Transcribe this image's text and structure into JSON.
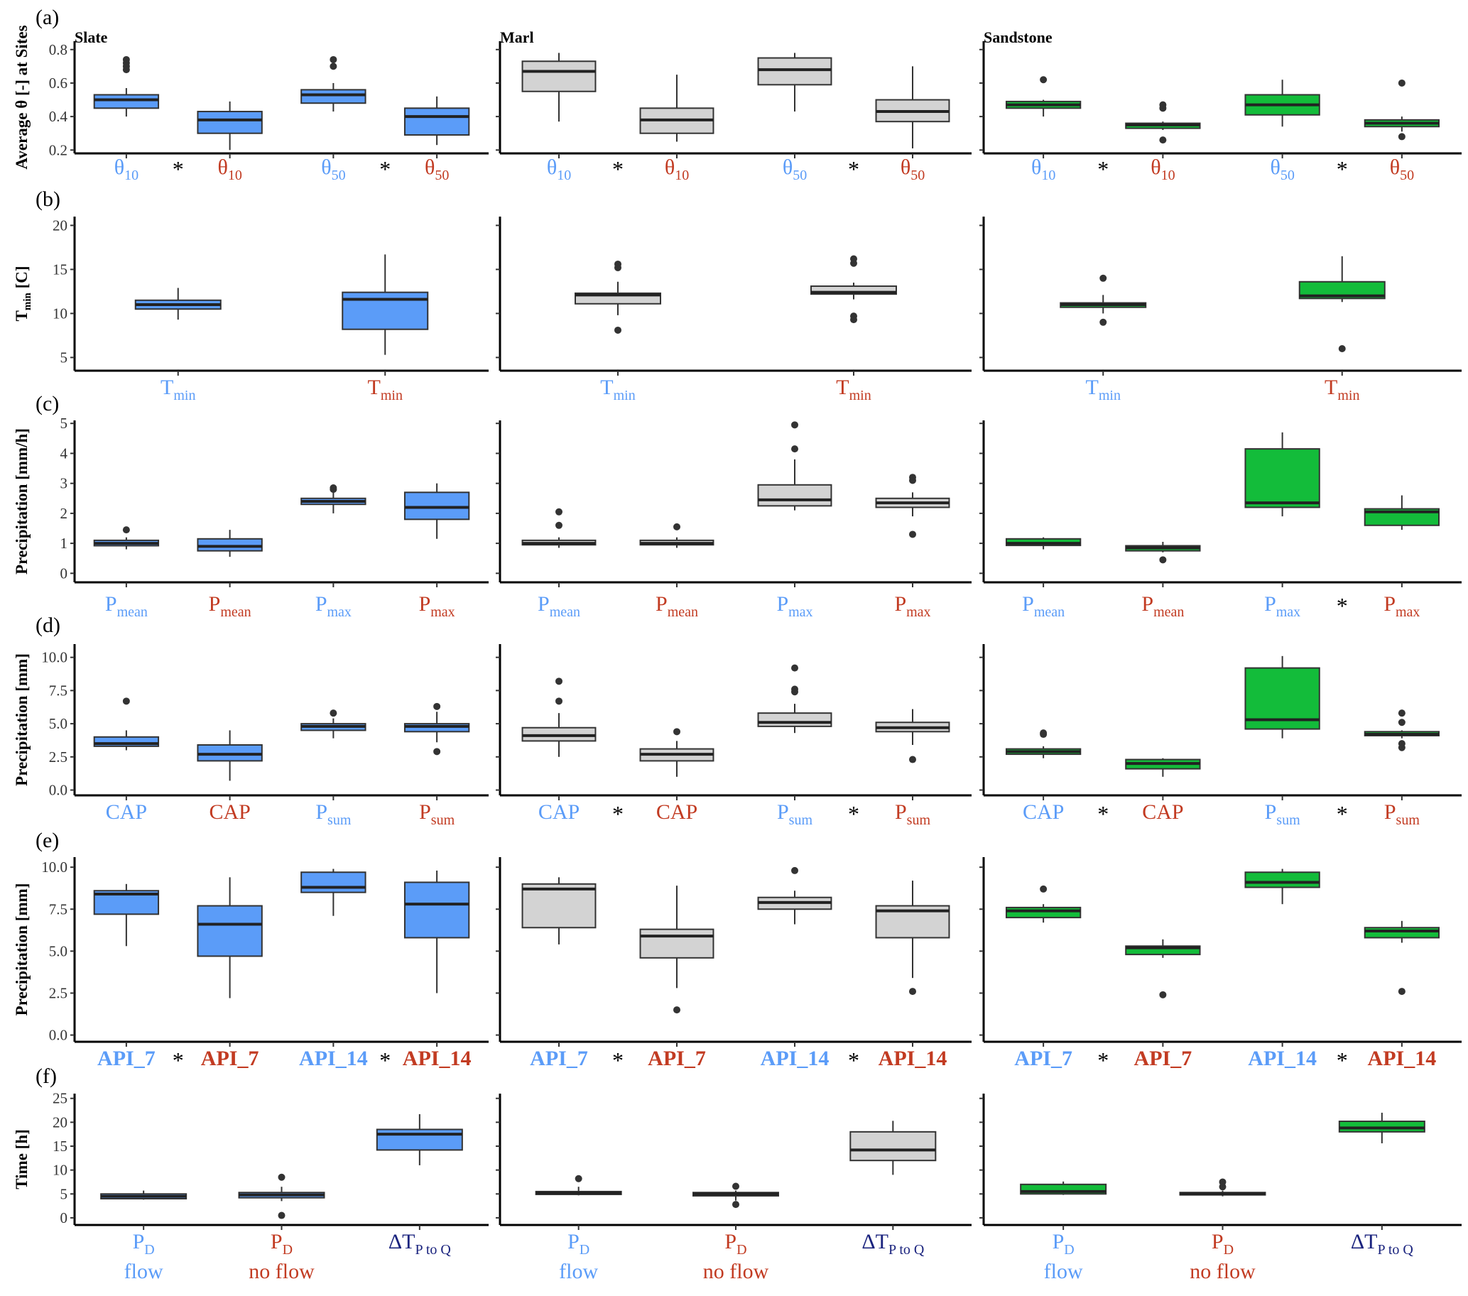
{
  "panel_titles": [
    "Slate",
    "Marl",
    "Sandstone"
  ],
  "colors": {
    "flow": "#5b9cf8",
    "noflow": "#c23b22",
    "slate": "#5b9cf8",
    "marl": "#d3d3d3",
    "sandstone": "#13bc3a",
    "dt": "#1a237e"
  },
  "chart_data": [
    {
      "type": "box",
      "panel": "(a)",
      "ylabel": "Average θ [-] at Sites",
      "yticks": [
        "0.2",
        "0.4",
        "0.6",
        "0.8"
      ],
      "ylim": [
        0.18,
        0.85
      ],
      "categories": [
        {
          "main": "θ",
          "sub": "10",
          "cond": "flow"
        },
        {
          "main": "θ",
          "sub": "10",
          "cond": "noflow"
        },
        {
          "main": "θ",
          "sub": "50",
          "cond": "flow"
        },
        {
          "main": "θ",
          "sub": "50",
          "cond": "noflow"
        }
      ],
      "stars": {
        "Slate": [
          0,
          2
        ],
        "Marl": [
          0,
          2
        ],
        "Sandstone": [
          0,
          2
        ]
      },
      "groups": {
        "Slate": [
          {
            "q1": 0.45,
            "med": 0.5,
            "q3": 0.53,
            "lo": 0.4,
            "hi": 0.57,
            "out": [
              0.68,
              0.7,
              0.72,
              0.74
            ]
          },
          {
            "q1": 0.3,
            "med": 0.38,
            "q3": 0.43,
            "lo": 0.2,
            "hi": 0.49,
            "out": []
          },
          {
            "q1": 0.48,
            "med": 0.53,
            "q3": 0.56,
            "lo": 0.43,
            "hi": 0.6,
            "out": [
              0.7,
              0.74
            ]
          },
          {
            "q1": 0.29,
            "med": 0.4,
            "q3": 0.45,
            "lo": 0.23,
            "hi": 0.52,
            "out": []
          }
        ],
        "Marl": [
          {
            "q1": 0.55,
            "med": 0.67,
            "q3": 0.73,
            "lo": 0.37,
            "hi": 0.78,
            "out": []
          },
          {
            "q1": 0.3,
            "med": 0.38,
            "q3": 0.45,
            "lo": 0.25,
            "hi": 0.65,
            "out": []
          },
          {
            "q1": 0.59,
            "med": 0.68,
            "q3": 0.75,
            "lo": 0.43,
            "hi": 0.78,
            "out": []
          },
          {
            "q1": 0.37,
            "med": 0.43,
            "q3": 0.5,
            "lo": 0.21,
            "hi": 0.7,
            "out": []
          }
        ],
        "Sandstone": [
          {
            "q1": 0.45,
            "med": 0.47,
            "q3": 0.49,
            "lo": 0.4,
            "hi": 0.5,
            "out": [
              0.62
            ]
          },
          {
            "q1": 0.33,
            "med": 0.35,
            "q3": 0.36,
            "lo": 0.32,
            "hi": 0.37,
            "out": [
              0.26,
              0.45,
              0.47
            ]
          },
          {
            "q1": 0.41,
            "med": 0.47,
            "q3": 0.53,
            "lo": 0.34,
            "hi": 0.62,
            "out": []
          },
          {
            "q1": 0.34,
            "med": 0.36,
            "q3": 0.38,
            "lo": 0.31,
            "hi": 0.4,
            "out": [
              0.28,
              0.6
            ]
          }
        ]
      }
    },
    {
      "type": "box",
      "panel": "(b)",
      "ylabel": "T min [C]",
      "yticks": [
        "5",
        "10",
        "15",
        "20"
      ],
      "ylim": [
        3.5,
        21
      ],
      "categories": [
        {
          "main": "T",
          "sub": "min",
          "cond": "flow"
        },
        {
          "main": "T",
          "sub": "min",
          "cond": "noflow"
        }
      ],
      "stars": {},
      "groups": {
        "Slate": [
          {
            "q1": 10.5,
            "med": 11.0,
            "q3": 11.5,
            "lo": 9.3,
            "hi": 12.9,
            "out": []
          },
          {
            "q1": 8.2,
            "med": 11.6,
            "q3": 12.4,
            "lo": 5.3,
            "hi": 16.7,
            "out": []
          }
        ],
        "Marl": [
          {
            "q1": 11.1,
            "med": 12.1,
            "q3": 12.3,
            "lo": 9.8,
            "hi": 13.6,
            "out": [
              8.1,
              15.2,
              15.6
            ]
          },
          {
            "q1": 12.2,
            "med": 12.4,
            "q3": 13.1,
            "lo": 11.6,
            "hi": 13.5,
            "out": [
              9.3,
              9.7,
              15.7,
              16.2
            ]
          }
        ],
        "Sandstone": [
          {
            "q1": 10.7,
            "med": 11.0,
            "q3": 11.2,
            "lo": 10.0,
            "hi": 12.1,
            "out": [
              9.0,
              14.0
            ]
          },
          {
            "q1": 11.7,
            "med": 12.0,
            "q3": 13.6,
            "lo": 11.3,
            "hi": 16.5,
            "out": [
              6.0
            ]
          }
        ]
      }
    },
    {
      "type": "box",
      "panel": "(c)",
      "ylabel": "Precipitation [mm/h]",
      "yticks": [
        "0",
        "1",
        "2",
        "3",
        "4",
        "5"
      ],
      "ylim": [
        -0.3,
        5.1
      ],
      "categories": [
        {
          "main": "P",
          "sub": "mean",
          "cond": "flow"
        },
        {
          "main": "P",
          "sub": "mean",
          "cond": "noflow"
        },
        {
          "main": "P",
          "sub": "max",
          "cond": "flow"
        },
        {
          "main": "P",
          "sub": "max",
          "cond": "noflow"
        }
      ],
      "stars": {
        "Sandstone": [
          2
        ]
      },
      "groups": {
        "Slate": [
          {
            "q1": 0.92,
            "med": 1.0,
            "q3": 1.1,
            "lo": 0.8,
            "hi": 1.2,
            "out": [
              1.45
            ]
          },
          {
            "q1": 0.75,
            "med": 0.9,
            "q3": 1.15,
            "lo": 0.55,
            "hi": 1.45,
            "out": []
          },
          {
            "q1": 2.3,
            "med": 2.4,
            "q3": 2.5,
            "lo": 2.0,
            "hi": 2.7,
            "out": [
              2.8,
              2.85
            ]
          },
          {
            "q1": 1.8,
            "med": 2.2,
            "q3": 2.7,
            "lo": 1.15,
            "hi": 3.0,
            "out": []
          }
        ],
        "Marl": [
          {
            "q1": 0.95,
            "med": 1.0,
            "q3": 1.1,
            "lo": 0.85,
            "hi": 1.2,
            "out": [
              1.6,
              2.05
            ]
          },
          {
            "q1": 0.95,
            "med": 1.0,
            "q3": 1.1,
            "lo": 0.85,
            "hi": 1.2,
            "out": [
              1.55
            ]
          },
          {
            "q1": 2.25,
            "med": 2.45,
            "q3": 2.95,
            "lo": 2.1,
            "hi": 3.8,
            "out": [
              4.15,
              4.95
            ]
          },
          {
            "q1": 2.2,
            "med": 2.35,
            "q3": 2.5,
            "lo": 1.9,
            "hi": 2.7,
            "out": [
              1.3,
              3.1,
              3.2
            ]
          }
        ],
        "Sandstone": [
          {
            "q1": 0.93,
            "med": 1.0,
            "q3": 1.15,
            "lo": 0.8,
            "hi": 1.2,
            "out": []
          },
          {
            "q1": 0.75,
            "med": 0.85,
            "q3": 0.92,
            "lo": 0.7,
            "hi": 1.05,
            "out": [
              0.45
            ]
          },
          {
            "q1": 2.2,
            "med": 2.35,
            "q3": 4.15,
            "lo": 1.9,
            "hi": 4.7,
            "out": []
          },
          {
            "q1": 1.6,
            "med": 2.05,
            "q3": 2.15,
            "lo": 1.45,
            "hi": 2.6,
            "out": []
          }
        ]
      }
    },
    {
      "type": "box",
      "panel": "(d)",
      "ylabel": "Precipitation [mm]",
      "yticks": [
        "0.0",
        "2.5",
        "5.0",
        "7.5",
        "10.0"
      ],
      "ylim": [
        -0.4,
        11.0
      ],
      "categories": [
        {
          "main": "CAP",
          "sub": "",
          "cond": "flow"
        },
        {
          "main": "CAP",
          "sub": "",
          "cond": "noflow"
        },
        {
          "main": "P",
          "sub": "sum",
          "cond": "flow"
        },
        {
          "main": "P",
          "sub": "sum",
          "cond": "noflow"
        }
      ],
      "stars": {
        "Marl": [
          0,
          2
        ],
        "Sandstone": [
          0,
          2
        ]
      },
      "groups": {
        "Slate": [
          {
            "q1": 3.3,
            "med": 3.5,
            "q3": 4.0,
            "lo": 3.0,
            "hi": 4.5,
            "out": [
              6.7
            ]
          },
          {
            "q1": 2.2,
            "med": 2.7,
            "q3": 3.4,
            "lo": 0.7,
            "hi": 4.5,
            "out": []
          },
          {
            "q1": 4.5,
            "med": 4.8,
            "q3": 5.0,
            "lo": 3.9,
            "hi": 5.4,
            "out": [
              5.8
            ]
          },
          {
            "q1": 4.4,
            "med": 4.8,
            "q3": 5.0,
            "lo": 3.6,
            "hi": 5.9,
            "out": [
              2.9,
              6.3
            ]
          }
        ],
        "Marl": [
          {
            "q1": 3.7,
            "med": 4.1,
            "q3": 4.7,
            "lo": 2.5,
            "hi": 5.8,
            "out": [
              6.7,
              8.2
            ]
          },
          {
            "q1": 2.2,
            "med": 2.7,
            "q3": 3.1,
            "lo": 1.0,
            "hi": 3.7,
            "out": [
              4.4
            ]
          },
          {
            "q1": 4.8,
            "med": 5.1,
            "q3": 5.8,
            "lo": 4.3,
            "hi": 6.5,
            "out": [
              7.4,
              7.6,
              9.2
            ]
          },
          {
            "q1": 4.4,
            "med": 4.7,
            "q3": 5.1,
            "lo": 3.4,
            "hi": 6.1,
            "out": [
              2.3
            ]
          }
        ],
        "Sandstone": [
          {
            "q1": 2.7,
            "med": 2.9,
            "q3": 3.1,
            "lo": 2.4,
            "hi": 3.3,
            "out": [
              4.2,
              4.3
            ]
          },
          {
            "q1": 1.6,
            "med": 2.0,
            "q3": 2.3,
            "lo": 1.0,
            "hi": 2.4,
            "out": []
          },
          {
            "q1": 4.6,
            "med": 5.3,
            "q3": 9.2,
            "lo": 3.9,
            "hi": 10.1,
            "out": []
          },
          {
            "q1": 4.1,
            "med": 4.2,
            "q3": 4.4,
            "lo": 3.9,
            "hi": 4.5,
            "out": [
              3.2,
              3.5,
              5.1,
              5.8
            ]
          }
        ]
      }
    },
    {
      "type": "box",
      "panel": "(e)",
      "ylabel": "Precipitation [mm]",
      "yticks": [
        "0.0",
        "2.5",
        "5.0",
        "7.5",
        "10.0"
      ],
      "ylim": [
        -0.4,
        10.6
      ],
      "bold_labels": true,
      "categories": [
        {
          "main": "API_7",
          "sub": "",
          "cond": "flow"
        },
        {
          "main": "API_7",
          "sub": "",
          "cond": "noflow"
        },
        {
          "main": "API_14",
          "sub": "",
          "cond": "flow"
        },
        {
          "main": "API_14",
          "sub": "",
          "cond": "noflow"
        }
      ],
      "stars": {
        "Slate": [
          0,
          2
        ],
        "Marl": [
          0,
          2
        ],
        "Sandstone": [
          0,
          2
        ]
      },
      "groups": {
        "Slate": [
          {
            "q1": 7.2,
            "med": 8.4,
            "q3": 8.6,
            "lo": 5.3,
            "hi": 9.0,
            "out": []
          },
          {
            "q1": 4.7,
            "med": 6.6,
            "q3": 7.7,
            "lo": 2.2,
            "hi": 9.4,
            "out": []
          },
          {
            "q1": 8.5,
            "med": 8.8,
            "q3": 9.7,
            "lo": 7.1,
            "hi": 9.9,
            "out": []
          },
          {
            "q1": 5.8,
            "med": 7.8,
            "q3": 9.1,
            "lo": 2.5,
            "hi": 9.8,
            "out": []
          }
        ],
        "Marl": [
          {
            "q1": 6.4,
            "med": 8.7,
            "q3": 9.0,
            "lo": 5.4,
            "hi": 9.4,
            "out": []
          },
          {
            "q1": 4.6,
            "med": 5.9,
            "q3": 6.3,
            "lo": 2.8,
            "hi": 8.9,
            "out": [
              1.5
            ]
          },
          {
            "q1": 7.5,
            "med": 7.9,
            "q3": 8.2,
            "lo": 6.6,
            "hi": 8.6,
            "out": [
              9.8
            ]
          },
          {
            "q1": 5.8,
            "med": 7.4,
            "q3": 7.7,
            "lo": 3.4,
            "hi": 9.2,
            "out": [
              2.6
            ]
          }
        ],
        "Sandstone": [
          {
            "q1": 7.0,
            "med": 7.4,
            "q3": 7.6,
            "lo": 6.7,
            "hi": 7.8,
            "out": [
              8.7
            ]
          },
          {
            "q1": 4.8,
            "med": 5.2,
            "q3": 5.3,
            "lo": 4.6,
            "hi": 5.7,
            "out": [
              2.4
            ]
          },
          {
            "q1": 8.8,
            "med": 9.1,
            "q3": 9.7,
            "lo": 7.8,
            "hi": 9.9,
            "out": []
          },
          {
            "q1": 5.8,
            "med": 6.2,
            "q3": 6.4,
            "lo": 5.5,
            "hi": 6.8,
            "out": [
              2.6
            ]
          }
        ]
      }
    },
    {
      "type": "box",
      "panel": "(f)",
      "ylabel": "Time [h]",
      "yticks": [
        "0",
        "5",
        "10",
        "15",
        "20",
        "25"
      ],
      "ylim": [
        -1.5,
        26
      ],
      "categories": [
        {
          "main": "P",
          "sub": "D",
          "line2": "flow",
          "cond": "flow"
        },
        {
          "main": "P",
          "sub": "D",
          "line2": "no flow",
          "cond": "noflow"
        },
        {
          "main": "ΔT",
          "sub": "P to Q",
          "line2": "",
          "cond": "dt"
        }
      ],
      "stars": {},
      "groups": {
        "Slate": [
          {
            "q1": 4.0,
            "med": 4.5,
            "q3": 5.0,
            "lo": 3.8,
            "hi": 5.7,
            "out": []
          },
          {
            "q1": 4.2,
            "med": 4.8,
            "q3": 5.3,
            "lo": 3.5,
            "hi": 6.5,
            "out": [
              0.5,
              8.5
            ]
          },
          {
            "q1": 14.2,
            "med": 17.5,
            "q3": 18.5,
            "lo": 11.0,
            "hi": 21.7,
            "out": []
          }
        ],
        "Marl": [
          {
            "q1": 4.9,
            "med": 5.2,
            "q3": 5.5,
            "lo": 4.7,
            "hi": 6.5,
            "out": [
              8.2
            ]
          },
          {
            "q1": 4.6,
            "med": 5.0,
            "q3": 5.3,
            "lo": 3.6,
            "hi": 5.7,
            "out": [
              2.8,
              6.6
            ]
          },
          {
            "q1": 12.0,
            "med": 14.2,
            "q3": 18.0,
            "lo": 9.0,
            "hi": 20.3,
            "out": []
          }
        ],
        "Sandstone": [
          {
            "q1": 5.0,
            "med": 5.5,
            "q3": 7.0,
            "lo": 4.8,
            "hi": 7.6,
            "out": []
          },
          {
            "q1": 4.8,
            "med": 5.0,
            "q3": 5.3,
            "lo": 4.5,
            "hi": 5.7,
            "out": [
              6.5,
              7.5
            ]
          },
          {
            "q1": 18.0,
            "med": 18.8,
            "q3": 20.2,
            "lo": 15.6,
            "hi": 22.0,
            "out": []
          }
        ]
      }
    }
  ]
}
